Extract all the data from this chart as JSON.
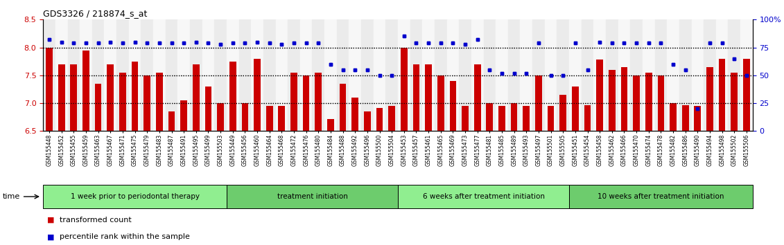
{
  "title": "GDS3326 / 218874_s_at",
  "samples": [
    "GSM155448",
    "GSM155452",
    "GSM155455",
    "GSM155459",
    "GSM155463",
    "GSM155467",
    "GSM155471",
    "GSM155475",
    "GSM155479",
    "GSM155483",
    "GSM155487",
    "GSM155491",
    "GSM155495",
    "GSM155499",
    "GSM155503",
    "GSM155449",
    "GSM155456",
    "GSM155460",
    "GSM155464",
    "GSM155468",
    "GSM155472",
    "GSM155476",
    "GSM155480",
    "GSM155484",
    "GSM155488",
    "GSM155492",
    "GSM155496",
    "GSM155500",
    "GSM155504",
    "GSM155453",
    "GSM155457",
    "GSM155461",
    "GSM155465",
    "GSM155469",
    "GSM155473",
    "GSM155477",
    "GSM155481",
    "GSM155485",
    "GSM155489",
    "GSM155493",
    "GSM155497",
    "GSM155501",
    "GSM155505",
    "GSM155451",
    "GSM155454",
    "GSM155458",
    "GSM155462",
    "GSM155466",
    "GSM155470",
    "GSM155474",
    "GSM155478",
    "GSM155482",
    "GSM155486",
    "GSM155490",
    "GSM155494",
    "GSM155498",
    "GSM155502",
    "GSM155506"
  ],
  "bar_values": [
    8.0,
    7.7,
    7.7,
    7.95,
    7.35,
    7.7,
    7.55,
    7.75,
    7.5,
    7.55,
    6.85,
    7.05,
    7.7,
    7.3,
    7.0,
    7.75,
    7.0,
    7.8,
    6.95,
    6.95,
    7.55,
    7.5,
    7.55,
    6.72,
    7.35,
    7.1,
    6.85,
    6.92,
    6.95,
    8.0,
    7.7,
    7.7,
    7.5,
    7.4,
    6.95,
    7.7,
    7.0,
    6.95,
    7.0,
    6.95,
    7.5,
    6.95,
    7.15,
    7.3,
    6.97,
    7.78,
    7.6,
    7.65,
    7.5,
    7.55,
    7.5,
    7.0,
    6.97,
    6.95,
    7.65,
    7.8,
    7.55,
    7.8
  ],
  "dot_values": [
    82,
    80,
    79,
    79,
    79,
    80,
    79,
    80,
    79,
    79,
    79,
    79,
    80,
    79,
    78,
    79,
    79,
    80,
    79,
    78,
    79,
    79,
    79,
    60,
    55,
    55,
    55,
    50,
    50,
    85,
    79,
    79,
    79,
    79,
    78,
    82,
    55,
    52,
    52,
    52,
    79,
    50,
    50,
    79,
    55,
    80,
    79,
    79,
    79,
    79,
    79,
    60,
    55,
    20,
    79,
    79,
    65,
    50
  ],
  "group_labels": [
    "1 week prior to periodontal therapy",
    "treatment initiation",
    "6 weeks after treatment initiation",
    "10 weeks after treatment initiation"
  ],
  "group_sizes": [
    15,
    14,
    14,
    15
  ],
  "bar_color": "#CC0000",
  "dot_color": "#0000CC",
  "ylim_left": [
    6.5,
    8.5
  ],
  "ylim_right": [
    0,
    100
  ],
  "yticks_left": [
    6.5,
    7.0,
    7.5,
    8.0,
    8.5
  ],
  "yticks_right": [
    0,
    25,
    50,
    75,
    100
  ],
  "bg_color": "#ffffff",
  "dotted_line_values": [
    7.0,
    7.5,
    8.0
  ],
  "baseline": 6.5,
  "green_light": "#90EE90",
  "green_dark": "#6dcc6d",
  "legend_line1": "transformed count",
  "legend_line2": "percentile rank within the sample"
}
